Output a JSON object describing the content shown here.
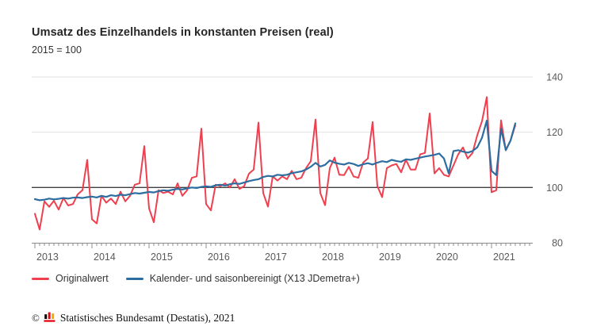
{
  "header": {
    "title": "Umsatz des Einzelhandels in konstanten Preisen (real)",
    "subtitle": "2015 = 100"
  },
  "legend": {
    "items": [
      {
        "label": "Originalwert",
        "color": "#ee404e"
      },
      {
        "label": "Kalender- und saisonbereinigt (X13 JDemetra+)",
        "color": "#2e6d9f"
      }
    ]
  },
  "footer": {
    "copyright": "©",
    "logo": "destatis-bars-icon",
    "source": "Statistisches Bundesamt (Destatis), 2021"
  },
  "chart_data": {
    "type": "line",
    "title": "Umsatz des Einzelhandels in konstanten Preisen (real)",
    "subtitle": "2015 = 100",
    "frequency": "monthly",
    "start_year": 2013,
    "points_per_year": 12,
    "years": [
      "2013",
      "2014",
      "2015",
      "2016",
      "2017",
      "2018",
      "2019",
      "2020",
      "2021"
    ],
    "y_ticks": [
      80,
      100,
      120,
      140
    ],
    "ylim": [
      80,
      140
    ],
    "baseline": 100,
    "grid": "horizontal-light",
    "legend_position": "bottom",
    "series": [
      {
        "name": "Originalwert",
        "color": "#ee404e",
        "values": [
          90.5,
          84.8,
          95,
          93,
          95.2,
          92,
          96.2,
          93.5,
          94,
          97.5,
          99,
          110,
          88.5,
          87,
          97,
          94.5,
          96,
          94,
          98.5,
          95,
          97,
          101,
          101.5,
          115,
          92.5,
          87.4,
          99,
          98,
          98.5,
          97.5,
          101.5,
          97,
          99,
          103.5,
          104,
          121.3,
          94,
          91.7,
          101,
          100.5,
          101.5,
          100,
          103,
          99.5,
          100.5,
          105,
          106.5,
          123.5,
          98,
          93.1,
          104,
          102.5,
          104,
          103,
          106,
          103,
          103.5,
          107,
          109.5,
          124.6,
          98,
          93.6,
          107,
          110.8,
          104.6,
          104.5,
          107.5,
          104,
          103.5,
          109,
          110.5,
          123.7,
          100.5,
          96.5,
          107,
          108,
          108.5,
          105.5,
          110,
          106.5,
          106.5,
          112,
          112.5,
          126.8,
          105.1,
          107,
          104.6,
          104,
          108,
          112,
          114.5,
          110.5,
          112.5,
          118.9,
          124,
          132.7,
          98.3,
          99,
          124.3,
          113.5,
          117,
          122.5
        ]
      },
      {
        "name": "Kalender- und saisonbereinigt (X13 JDemetra+)",
        "color": "#2e6d9f",
        "values": [
          95.8,
          95.4,
          95.6,
          96,
          95.7,
          95.9,
          96.2,
          96,
          96.3,
          96.4,
          96.2,
          96.5,
          96.7,
          96.4,
          97,
          96.6,
          97.2,
          96.9,
          97.4,
          97.2,
          97.6,
          98,
          97.8,
          98.1,
          98.4,
          98.2,
          98.7,
          99,
          98.8,
          99.2,
          99.5,
          99.3,
          99.7,
          100,
          99.8,
          100.2,
          100.4,
          100.2,
          100.8,
          101,
          100.7,
          101.2,
          101.5,
          101.3,
          101.8,
          102.3,
          102.7,
          103,
          103.8,
          104.2,
          104,
          104.6,
          104.4,
          104.6,
          105.2,
          105.5,
          105.8,
          106.5,
          107.5,
          108.9,
          107.6,
          108.2,
          109.8,
          109,
          108.6,
          108.3,
          108.9,
          108.5,
          107.8,
          108.4,
          108.8,
          108.3,
          109,
          109.5,
          109.2,
          110,
          109.6,
          109.3,
          110.2,
          110,
          110.4,
          110.8,
          111.2,
          111.5,
          111.8,
          112.3,
          110.5,
          105.1,
          113.2,
          113.5,
          113,
          112.6,
          113.2,
          114.5,
          118,
          124.2,
          106,
          104.5,
          121.3,
          113.5,
          117,
          123.2
        ]
      }
    ],
    "colors": {
      "grid_light": "#e2e2e2",
      "baseline": "#404040",
      "axis": "#8c8c8c"
    }
  }
}
